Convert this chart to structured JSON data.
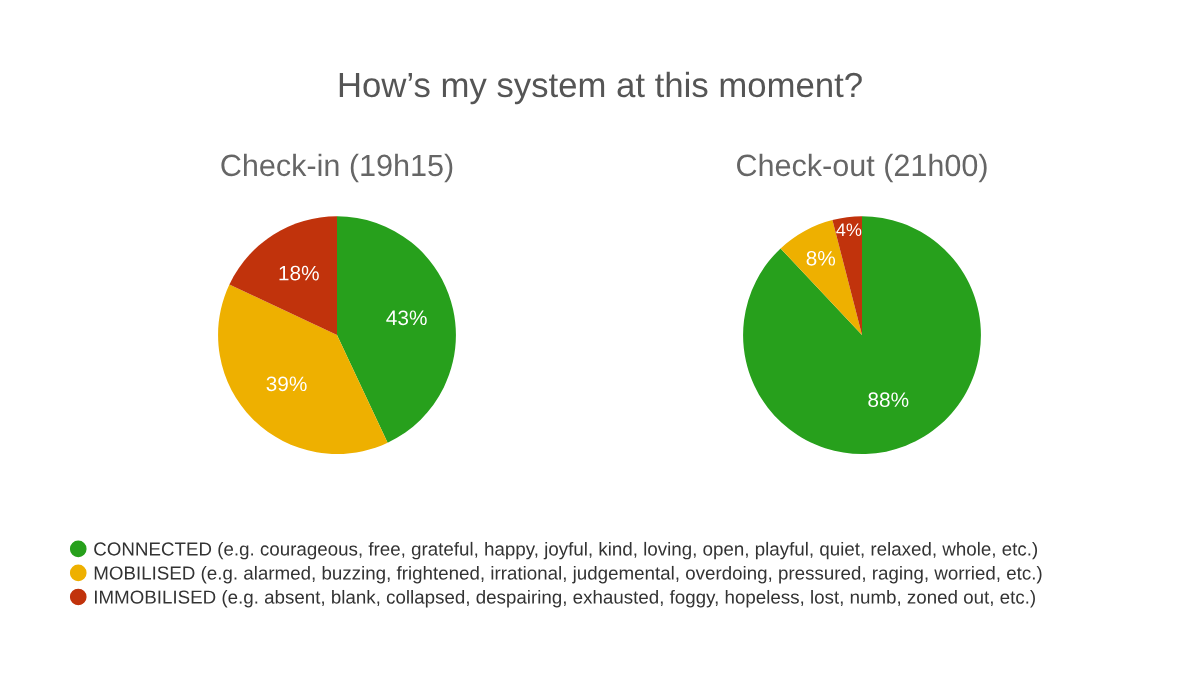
{
  "chart_data": [
    {
      "type": "other",
      "title": "How’s my system at this moment?"
    },
    {
      "type": "pie",
      "title": "Check-in (19h15)",
      "categories": [
        "CONNECTED (e.g. courageous, free, grateful, happy, joyful, kind, loving, open, playful, quiet, relaxed, whole, etc.)",
        "MOBILISED (e.g. alarmed, buzzing, frightened, irrational, judgemental, overdoing, pressured, raging, worried, etc.)",
        "IMMOBILISED (e.g. absent, blank, collapsed, despairing, exhausted, foggy, hopeless, lost, numb, zoned out, etc.)"
      ],
      "values": [
        43,
        39,
        18
      ],
      "colors": [
        "#27a01c",
        "#eeb000",
        "#c1330c"
      ],
      "value_labels": [
        "43%",
        "39%",
        "18%"
      ],
      "legend": "bottom"
    },
    {
      "type": "pie",
      "title": "Check-out (21h00)",
      "categories": [
        null,
        null,
        null
      ],
      "values": [
        88,
        8,
        4
      ],
      "colors": [
        "#27a01c",
        "#eeb000",
        "#c1330c"
      ],
      "value_labels": [
        "88%",
        "8%",
        "4%"
      ]
    }
  ]
}
